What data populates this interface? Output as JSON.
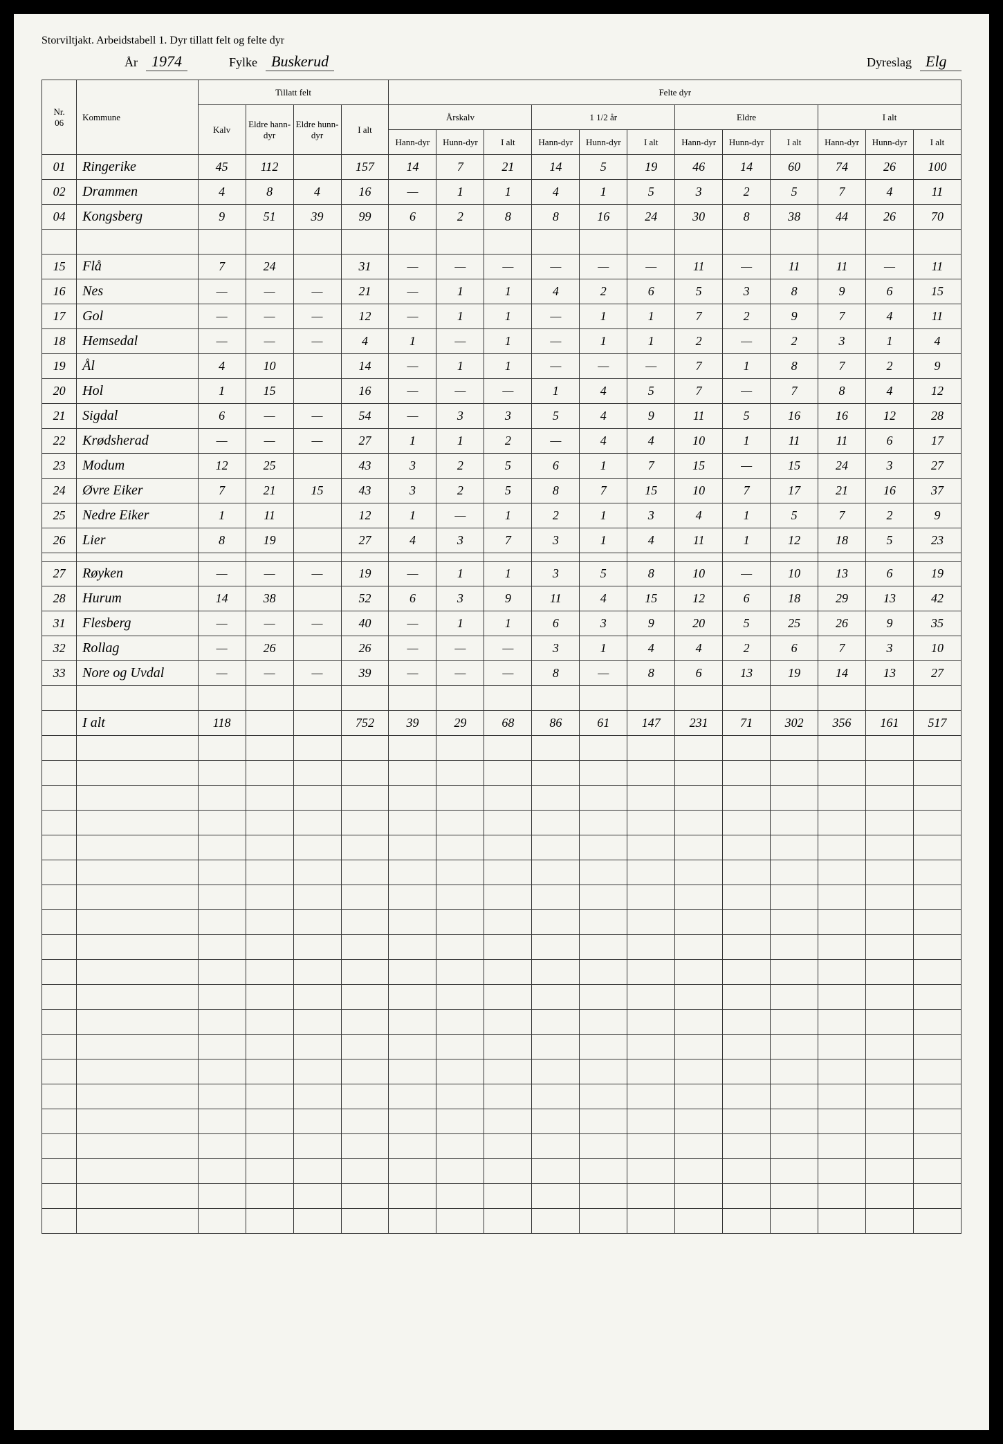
{
  "title": "Storviltjakt. Arbeidstabell 1. Dyr tillatt felt og felte dyr",
  "meta": {
    "ar_label": "År",
    "ar_value": "1974",
    "fylke_label": "Fylke",
    "fylke_value": "Buskerud",
    "dyreslag_label": "Dyreslag",
    "dyreslag_value": "Elg"
  },
  "headers": {
    "nr": "Nr.",
    "nr_sub": "06",
    "kommune": "Kommune",
    "tillatt_felt": "Tillatt felt",
    "felte_dyr": "Felte dyr",
    "kalv": "Kalv",
    "eldre_hann": "Eldre hann-dyr",
    "eldre_hunn": "Eldre hunn-dyr",
    "i_alt": "I alt",
    "arskalv": "Årskalv",
    "halvannet": "1 1/2 år",
    "eldre": "Eldre",
    "ialt_group": "I alt",
    "hann": "Hann-dyr",
    "hunn": "Hunn-dyr"
  },
  "rows": [
    {
      "nr": "01",
      "kommune": "Ringerike",
      "c": [
        "45",
        "112",
        "",
        "157",
        "14",
        "7",
        "21",
        "14",
        "5",
        "19",
        "46",
        "14",
        "60",
        "74",
        "26",
        "100"
      ]
    },
    {
      "nr": "02",
      "kommune": "Drammen",
      "c": [
        "4",
        "8",
        "4",
        "16",
        "—",
        "1",
        "1",
        "4",
        "1",
        "5",
        "3",
        "2",
        "5",
        "7",
        "4",
        "11"
      ]
    },
    {
      "nr": "04",
      "kommune": "Kongsberg",
      "c": [
        "9",
        "51",
        "39",
        "99",
        "6",
        "2",
        "8",
        "8",
        "16",
        "24",
        "30",
        "8",
        "38",
        "44",
        "26",
        "70"
      ]
    },
    {
      "nr": "",
      "kommune": "",
      "c": [
        "",
        "",
        "",
        "",
        "",
        "",
        "",
        "",
        "",
        "",
        "",
        "",
        "",
        "",
        "",
        ""
      ]
    },
    {
      "nr": "15",
      "kommune": "Flå",
      "c": [
        "7",
        "24",
        "",
        "31",
        "—",
        "—",
        "—",
        "—",
        "—",
        "—",
        "11",
        "—",
        "11",
        "11",
        "—",
        "11"
      ]
    },
    {
      "nr": "16",
      "kommune": "Nes",
      "c": [
        "—",
        "—",
        "—",
        "21",
        "—",
        "1",
        "1",
        "4",
        "2",
        "6",
        "5",
        "3",
        "8",
        "9",
        "6",
        "15"
      ]
    },
    {
      "nr": "17",
      "kommune": "Gol",
      "c": [
        "—",
        "—",
        "—",
        "12",
        "—",
        "1",
        "1",
        "—",
        "1",
        "1",
        "7",
        "2",
        "9",
        "7",
        "4",
        "11"
      ]
    },
    {
      "nr": "18",
      "kommune": "Hemsedal",
      "c": [
        "—",
        "—",
        "—",
        "4",
        "1",
        "—",
        "1",
        "—",
        "1",
        "1",
        "2",
        "—",
        "2",
        "3",
        "1",
        "4"
      ]
    },
    {
      "nr": "19",
      "kommune": "Ål",
      "c": [
        "4",
        "10",
        "",
        "14",
        "—",
        "1",
        "1",
        "—",
        "—",
        "—",
        "7",
        "1",
        "8",
        "7",
        "2",
        "9"
      ]
    },
    {
      "nr": "20",
      "kommune": "Hol",
      "c": [
        "1",
        "15",
        "",
        "16",
        "—",
        "—",
        "—",
        "1",
        "4",
        "5",
        "7",
        "—",
        "7",
        "8",
        "4",
        "12"
      ]
    },
    {
      "nr": "21",
      "kommune": "Sigdal",
      "c": [
        "6",
        "—",
        "—",
        "54",
        "—",
        "3",
        "3",
        "5",
        "4",
        "9",
        "11",
        "5",
        "16",
        "16",
        "12",
        "28"
      ]
    },
    {
      "nr": "22",
      "kommune": "Krødsherad",
      "c": [
        "—",
        "—",
        "—",
        "27",
        "1",
        "1",
        "2",
        "—",
        "4",
        "4",
        "10",
        "1",
        "11",
        "11",
        "6",
        "17"
      ]
    },
    {
      "nr": "23",
      "kommune": "Modum",
      "c": [
        "12",
        "25",
        "",
        "43",
        "3",
        "2",
        "5",
        "6",
        "1",
        "7",
        "15",
        "—",
        "15",
        "24",
        "3",
        "27"
      ]
    },
    {
      "nr": "24",
      "kommune": "Øvre Eiker",
      "c": [
        "7",
        "21",
        "15",
        "43",
        "3",
        "2",
        "5",
        "8",
        "7",
        "15",
        "10",
        "7",
        "17",
        "21",
        "16",
        "37"
      ]
    },
    {
      "nr": "25",
      "kommune": "Nedre Eiker",
      "c": [
        "1",
        "11",
        "",
        "12",
        "1",
        "—",
        "1",
        "2",
        "1",
        "3",
        "4",
        "1",
        "5",
        "7",
        "2",
        "9"
      ]
    },
    {
      "nr": "26",
      "kommune": "Lier",
      "c": [
        "8",
        "19",
        "",
        "27",
        "4",
        "3",
        "7",
        "3",
        "1",
        "4",
        "11",
        "1",
        "12",
        "18",
        "5",
        "23"
      ]
    }
  ],
  "rows2": [
    {
      "nr": "27",
      "kommune": "Røyken",
      "c": [
        "—",
        "—",
        "—",
        "19",
        "—",
        "1",
        "1",
        "3",
        "5",
        "8",
        "10",
        "—",
        "10",
        "13",
        "6",
        "19"
      ]
    },
    {
      "nr": "28",
      "kommune": "Hurum",
      "c": [
        "14",
        "38",
        "",
        "52",
        "6",
        "3",
        "9",
        "11",
        "4",
        "15",
        "12",
        "6",
        "18",
        "29",
        "13",
        "42"
      ]
    },
    {
      "nr": "31",
      "kommune": "Flesberg",
      "c": [
        "—",
        "—",
        "—",
        "40",
        "—",
        "1",
        "1",
        "6",
        "3",
        "9",
        "20",
        "5",
        "25",
        "26",
        "9",
        "35"
      ]
    },
    {
      "nr": "32",
      "kommune": "Rollag",
      "c": [
        "—",
        "26",
        "",
        "26",
        "—",
        "—",
        "—",
        "3",
        "1",
        "4",
        "4",
        "2",
        "6",
        "7",
        "3",
        "10"
      ]
    },
    {
      "nr": "33",
      "kommune": "Nore og Uvdal",
      "c": [
        "—",
        "—",
        "—",
        "39",
        "—",
        "—",
        "—",
        "8",
        "—",
        "8",
        "6",
        "13",
        "19",
        "14",
        "13",
        "27"
      ]
    },
    {
      "nr": "",
      "kommune": "",
      "c": [
        "",
        "",
        "",
        "",
        "",
        "",
        "",
        "",
        "",
        "",
        "",
        "",
        "",
        "",
        "",
        ""
      ]
    },
    {
      "nr": "",
      "kommune": "I alt",
      "c": [
        "118",
        "",
        "",
        "752",
        "39",
        "29",
        "68",
        "86",
        "61",
        "147",
        "231",
        "71",
        "302",
        "356",
        "161",
        "517"
      ]
    }
  ],
  "blank_rows": 20
}
